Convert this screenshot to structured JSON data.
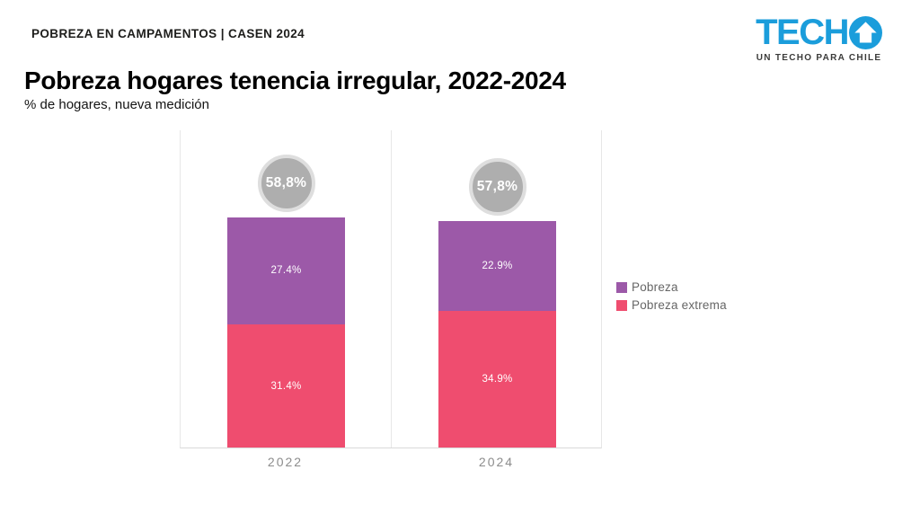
{
  "header": {
    "kicker": "POBREZA EN CAMPAMENTOS | CASEN 2024",
    "logo": {
      "brand_prefix": "TECH",
      "tagline": "UN TECHO PARA CHILE"
    }
  },
  "title": "Pobreza hogares tenencia irregular, 2022-2024",
  "subtitle": "% de hogares, nueva medición",
  "colors": {
    "pobreza": "#9c59a8",
    "pobreza_extrema": "#ef4d6f",
    "total_circle_fill": "#aeaeae",
    "total_circle_ring": "#dedede",
    "techo_blue": "#1b9ddb",
    "gridline": "#e7e7e7"
  },
  "chart_data": {
    "type": "bar",
    "stacked": true,
    "title": "Pobreza hogares tenencia irregular, 2022-2024",
    "subtitle": "% de hogares, nueva medición",
    "categories": [
      "2022",
      "2024"
    ],
    "series": [
      {
        "name": "Pobreza",
        "color": "#9c59a8",
        "values": [
          27.4,
          22.9
        ]
      },
      {
        "name": "Pobreza extrema",
        "color": "#ef4d6f",
        "values": [
          31.4,
          34.9
        ]
      }
    ],
    "totals": [
      58.8,
      57.8
    ],
    "total_labels": [
      "58,8%",
      "57,8%"
    ],
    "segment_labels": {
      "pobreza": [
        "27.4%",
        "22.9%"
      ],
      "pobreza_extrema": [
        "31.4%",
        "34.9%"
      ]
    },
    "xlabel": "",
    "ylabel": "",
    "ylim": [
      0,
      60
    ],
    "grid": "vertical-category-separators",
    "legend_position": "right"
  },
  "legend": {
    "items": [
      {
        "label": "Pobreza",
        "color": "#9c59a8"
      },
      {
        "label": "Pobreza extrema",
        "color": "#ef4d6f"
      }
    ]
  },
  "x_axis": {
    "labels": [
      "2022",
      "2024"
    ]
  }
}
